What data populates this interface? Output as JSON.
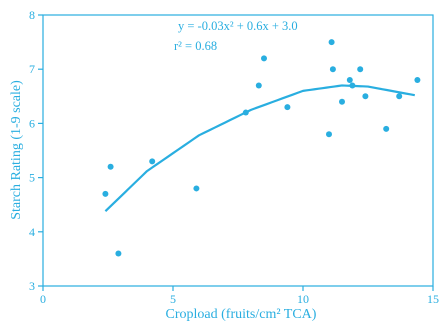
{
  "chart_data": {
    "type": "scatter",
    "title": "",
    "xlabel": "Cropload (fruits/cm² TCA)",
    "ylabel": "Starch Rating (1-9 scale)",
    "xlim": [
      0,
      15
    ],
    "ylim": [
      3,
      8
    ],
    "x_ticks": [
      0,
      5,
      10,
      15
    ],
    "y_ticks": [
      3,
      4,
      5,
      6,
      7,
      8
    ],
    "grid": false,
    "legend": "none",
    "color": "#29aee0",
    "annotations": {
      "equation": "y =  -0.03x² + 0.6x + 3.0",
      "r_squared": "r² = 0.68"
    },
    "points": [
      {
        "x": 2.4,
        "y": 4.7
      },
      {
        "x": 2.6,
        "y": 5.2
      },
      {
        "x": 2.9,
        "y": 3.6
      },
      {
        "x": 4.2,
        "y": 5.3
      },
      {
        "x": 5.9,
        "y": 4.8
      },
      {
        "x": 7.8,
        "y": 6.2
      },
      {
        "x": 8.3,
        "y": 6.7
      },
      {
        "x": 8.5,
        "y": 7.2
      },
      {
        "x": 9.4,
        "y": 6.3
      },
      {
        "x": 11.0,
        "y": 5.8
      },
      {
        "x": 11.1,
        "y": 7.5
      },
      {
        "x": 11.15,
        "y": 7.0
      },
      {
        "x": 11.5,
        "y": 6.4
      },
      {
        "x": 11.8,
        "y": 6.8
      },
      {
        "x": 11.9,
        "y": 6.7
      },
      {
        "x": 12.2,
        "y": 7.0
      },
      {
        "x": 12.4,
        "y": 6.5
      },
      {
        "x": 13.2,
        "y": 5.9
      },
      {
        "x": 13.7,
        "y": 6.5
      },
      {
        "x": 14.4,
        "y": 6.8
      }
    ],
    "fit_curve": {
      "type": "quadratic",
      "x_range": [
        2.4,
        14.3
      ],
      "samples": [
        {
          "x": 2.4,
          "y": 4.38
        },
        {
          "x": 4.0,
          "y": 5.12
        },
        {
          "x": 6.0,
          "y": 5.78
        },
        {
          "x": 8.0,
          "y": 6.25
        },
        {
          "x": 10.0,
          "y": 6.6
        },
        {
          "x": 11.5,
          "y": 6.7
        },
        {
          "x": 12.5,
          "y": 6.68
        },
        {
          "x": 14.3,
          "y": 6.52
        }
      ]
    }
  }
}
